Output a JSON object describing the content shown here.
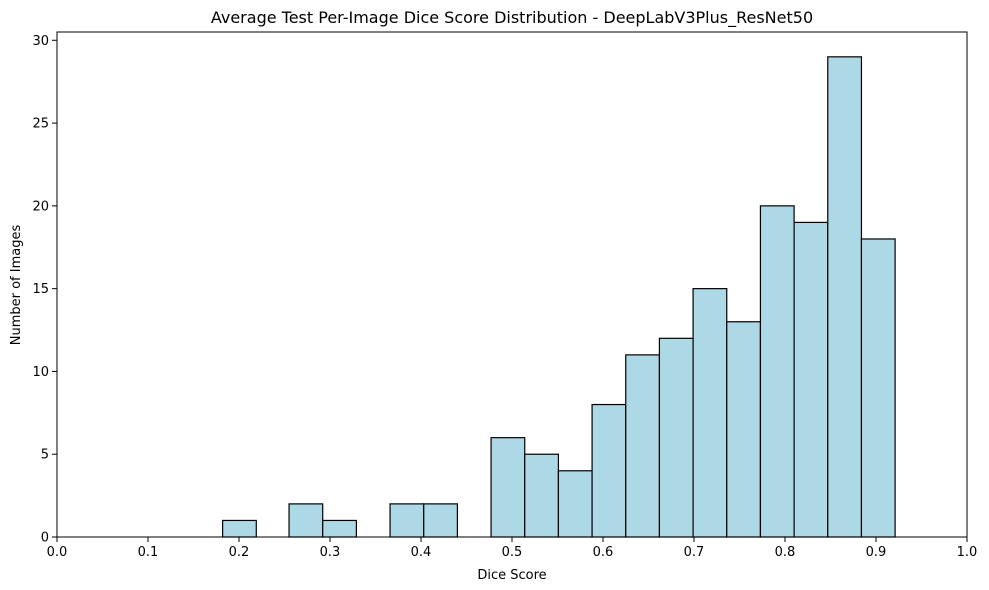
{
  "chart_data": {
    "type": "bar",
    "title": "Average Test Per-Image Dice Score Distribution - DeepLabV3Plus_ResNet50",
    "xlabel": "Dice Score",
    "ylabel": "Number of Images",
    "xlim": [
      0.0,
      1.0
    ],
    "ylim": [
      0,
      30.5
    ],
    "xticks": [
      "0.0",
      "0.1",
      "0.2",
      "0.3",
      "0.4",
      "0.5",
      "0.6",
      "0.7",
      "0.8",
      "0.9",
      "1.0"
    ],
    "yticks": [
      "0",
      "5",
      "10",
      "15",
      "20",
      "25",
      "30"
    ],
    "bar_color": "#add8e6",
    "edge_color": "#000000",
    "grid": false,
    "bins": [
      {
        "x0": 0.182,
        "x1": 0.219,
        "count": 1
      },
      {
        "x0": 0.255,
        "x1": 0.292,
        "count": 2
      },
      {
        "x0": 0.292,
        "x1": 0.329,
        "count": 1
      },
      {
        "x0": 0.366,
        "x1": 0.403,
        "count": 2
      },
      {
        "x0": 0.403,
        "x1": 0.44,
        "count": 2
      },
      {
        "x0": 0.477,
        "x1": 0.514,
        "count": 6
      },
      {
        "x0": 0.514,
        "x1": 0.551,
        "count": 5
      },
      {
        "x0": 0.551,
        "x1": 0.588,
        "count": 4
      },
      {
        "x0": 0.588,
        "x1": 0.625,
        "count": 8
      },
      {
        "x0": 0.625,
        "x1": 0.662,
        "count": 11
      },
      {
        "x0": 0.662,
        "x1": 0.699,
        "count": 12
      },
      {
        "x0": 0.699,
        "x1": 0.736,
        "count": 15
      },
      {
        "x0": 0.736,
        "x1": 0.773,
        "count": 13
      },
      {
        "x0": 0.773,
        "x1": 0.81,
        "count": 20
      },
      {
        "x0": 0.81,
        "x1": 0.847,
        "count": 19
      },
      {
        "x0": 0.847,
        "x1": 0.884,
        "count": 29
      },
      {
        "x0": 0.884,
        "x1": 0.921,
        "count": 18
      }
    ]
  }
}
